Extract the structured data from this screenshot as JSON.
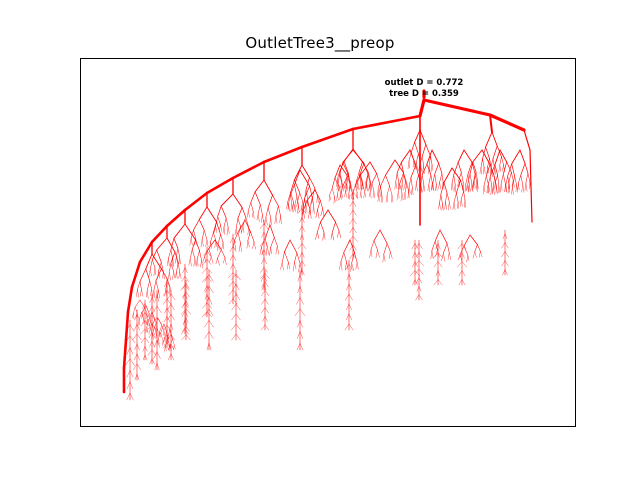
{
  "title": "OutletTree3__preop",
  "annotations": {
    "outlet_d": "outlet D = 0.772",
    "tree_d": "tree D = 0.359"
  },
  "tree_color": "#ff0000",
  "frame_color": "#000000"
}
